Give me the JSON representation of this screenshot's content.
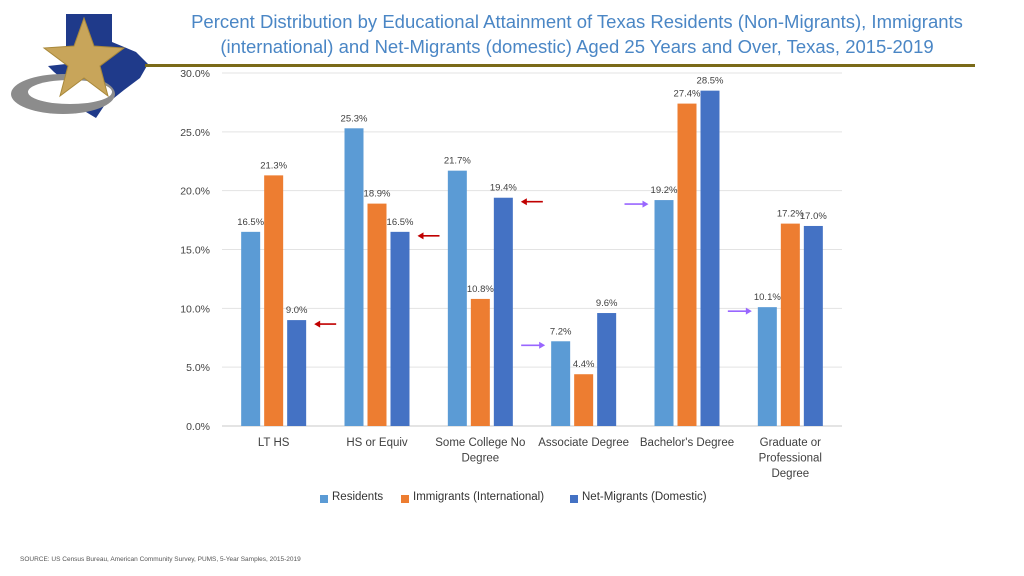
{
  "title_line1": "Percent Distribution by Educational Attainment of Texas Residents (Non-Migrants), Immigrants",
  "title_line2": "(international) and Net-Migrants (domestic) Aged 25 Years and Over, Texas, 2015-2019",
  "source": "SOURCE: US Census Bureau, American Community Survey, PUMS, 5-Year Samples, 2015-2019",
  "colors": {
    "residents": "#5b9bd5",
    "immigrants": "#ed7d31",
    "netmigrants": "#4472c4",
    "red_arrow": "#c00000",
    "purple_arrow": "#9966ff",
    "title": "#4a86c5",
    "rule": "#7a6a18"
  },
  "chart_data": {
    "type": "bar",
    "title": "Percent Distribution by Educational Attainment of Texas Residents (Non-Migrants), Immigrants (international) and Net-Migrants (domestic) Aged 25 Years and Over, Texas, 2015-2019",
    "categories": [
      [
        "LT HS"
      ],
      [
        "HS or Equiv"
      ],
      [
        "Some College No",
        "Degree"
      ],
      [
        "Associate Degree"
      ],
      [
        "Bachelor's Degree"
      ],
      [
        "Graduate or",
        "Professional",
        "Degree"
      ]
    ],
    "series": [
      {
        "name": "Residents",
        "color": "#5b9bd5",
        "values": [
          16.5,
          25.3,
          21.7,
          7.2,
          19.2,
          10.1
        ],
        "labels": [
          "16.5%",
          "25.3%",
          "21.7%",
          "7.2%",
          "19.2%",
          "10.1%"
        ]
      },
      {
        "name": "Immigrants (International)",
        "color": "#ed7d31",
        "values": [
          21.3,
          18.9,
          10.8,
          4.4,
          27.4,
          17.2
        ],
        "labels": [
          "21.3%",
          "18.9%",
          "10.8%",
          "4.4%",
          "27.4%",
          "17.2%"
        ]
      },
      {
        "name": "Net-Migrants (Domestic)",
        "color": "#4472c4",
        "values": [
          9.0,
          16.5,
          19.4,
          9.6,
          28.5,
          17.0
        ],
        "labels": [
          "9.0%",
          "16.5%",
          "19.4%",
          "9.6%",
          "28.5%",
          "17.0%"
        ]
      }
    ],
    "ylim": [
      0,
      30
    ],
    "yticks": [
      0,
      5,
      10,
      15,
      20,
      25,
      30
    ],
    "ytick_labels": [
      "0.0%",
      "5.0%",
      "10.0%",
      "15.0%",
      "20.0%",
      "25.0%",
      "30.0%"
    ],
    "xlabel": "",
    "ylabel": "",
    "grid": true,
    "legend_position": "bottom",
    "annotations": [
      {
        "type": "arrow",
        "direction": "left",
        "color": "red",
        "category": 0,
        "series": 2
      },
      {
        "type": "arrow",
        "direction": "left",
        "color": "red",
        "category": 1,
        "series": 2
      },
      {
        "type": "arrow",
        "direction": "left",
        "color": "red",
        "category": 2,
        "series": 2
      },
      {
        "type": "arrow",
        "direction": "right",
        "color": "purple",
        "category": 3,
        "series": 0
      },
      {
        "type": "arrow",
        "direction": "right",
        "color": "purple",
        "category": 4,
        "series": 0
      },
      {
        "type": "arrow",
        "direction": "right",
        "color": "purple",
        "category": 5,
        "series": 0
      }
    ]
  }
}
